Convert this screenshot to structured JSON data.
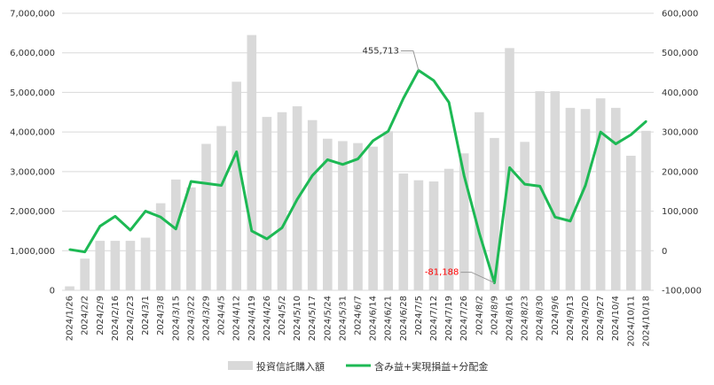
{
  "chart_data": {
    "type": "bar+line",
    "categories": [
      "2024/1/26",
      "2024/2/2",
      "2024/2/9",
      "2024/2/16",
      "2024/2/23",
      "2024/3/1",
      "2024/3/8",
      "2024/3/15",
      "2024/3/22",
      "2024/3/29",
      "2024/4/5",
      "2024/4/12",
      "2024/4/19",
      "2024/4/26",
      "2024/5/2",
      "2024/5/10",
      "2024/5/17",
      "2024/5/24",
      "2024/5/31",
      "2024/6/7",
      "2024/6/14",
      "2024/6/21",
      "2024/6/28",
      "2024/7/5",
      "2024/7/12",
      "2024/7/19",
      "2024/7/26",
      "2024/8/2",
      "2024/8/9",
      "2024/8/16",
      "2024/8/23",
      "2024/8/30",
      "2024/9/6",
      "2024/9/13",
      "2024/9/20",
      "2024/9/27",
      "2024/10/4",
      "2024/10/11",
      "2024/10/18"
    ],
    "series": [
      {
        "name": "投資信託購入額",
        "kind": "bar",
        "axis": "left",
        "color": "#d9d9d9",
        "values": [
          100000,
          800000,
          1250000,
          1250000,
          1250000,
          1330000,
          2200000,
          2800000,
          2600000,
          3700000,
          4150000,
          5270000,
          6450000,
          4380000,
          4500000,
          4650000,
          4300000,
          3830000,
          3770000,
          3720000,
          3630000,
          4020000,
          2950000,
          2780000,
          2750000,
          3070000,
          3460000,
          4500000,
          3850000,
          6120000,
          3750000,
          5030000,
          5030000,
          4610000,
          4580000,
          4850000,
          4610000,
          3400000,
          4030000
        ]
      },
      {
        "name": "含み益+実現損益+分配金",
        "kind": "line",
        "axis": "right",
        "color": "#1db954",
        "values": [
          3000,
          -3000,
          62000,
          87000,
          52000,
          100000,
          85000,
          55000,
          175000,
          170000,
          165000,
          250000,
          50000,
          30000,
          58000,
          130000,
          190000,
          230000,
          218000,
          232000,
          278000,
          302000,
          385000,
          455713,
          430000,
          375000,
          190000,
          45000,
          -81188,
          210000,
          168000,
          163000,
          85000,
          75000,
          165000,
          300000,
          270000,
          293000,
          327000
        ]
      }
    ],
    "y_left": {
      "min": 0,
      "max": 7000000,
      "ticks": [
        "0",
        "1,000,000",
        "2,000,000",
        "3,000,000",
        "4,000,000",
        "5,000,000",
        "6,000,000",
        "7,000,000"
      ]
    },
    "y_right": {
      "min": -100000,
      "max": 600000,
      "ticks": [
        "-100,000",
        "0",
        "100,000",
        "200,000",
        "300,000",
        "400,000",
        "500,000",
        "600,000"
      ]
    },
    "annotations": [
      {
        "index": 23,
        "label": "455,713",
        "color": "#333333"
      },
      {
        "index": 28,
        "label": "-81,188",
        "color": "#ff0000"
      }
    ],
    "legend": {
      "placement": "bottom"
    },
    "grid": true
  }
}
